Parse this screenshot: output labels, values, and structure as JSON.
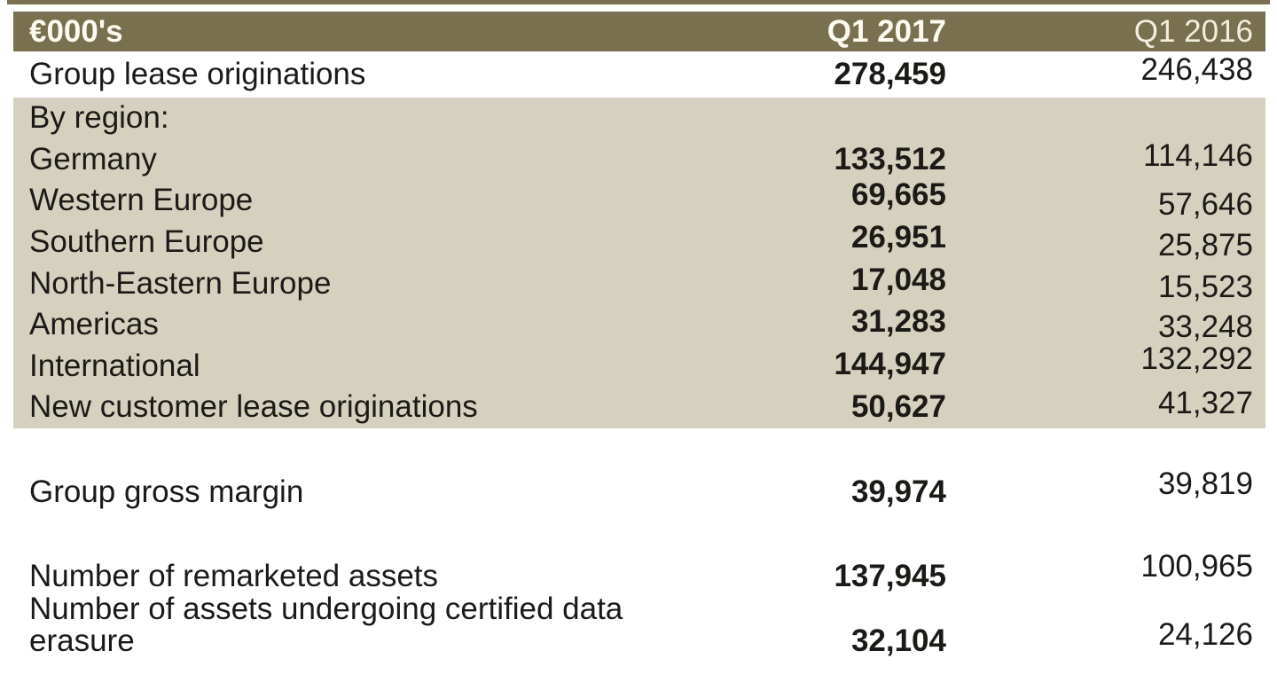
{
  "chart_data": {
    "type": "table",
    "title": "",
    "unit_label": "€000's",
    "columns": [
      "Q1 2017",
      "Q1 2016"
    ],
    "rows": [
      {
        "label": "Group lease originations",
        "q1_2017": "278,459",
        "q1_2016": "246,438"
      },
      {
        "label": "By region:",
        "q1_2017": "",
        "q1_2016": ""
      },
      {
        "label": "Germany",
        "q1_2017": "133,512",
        "q1_2016": "114,146"
      },
      {
        "label": "Western Europe",
        "q1_2017": "69,665",
        "q1_2016": "57,646"
      },
      {
        "label": "Southern Europe",
        "q1_2017": "26,951",
        "q1_2016": "25,875"
      },
      {
        "label": "North-Eastern Europe",
        "q1_2017": "17,048",
        "q1_2016": "15,523"
      },
      {
        "label": "Americas",
        "q1_2017": "31,283",
        "q1_2016": "33,248"
      },
      {
        "label": "International",
        "q1_2017": "144,947",
        "q1_2016": "132,292"
      },
      {
        "label": "New customer lease originations",
        "q1_2017": "50,627",
        "q1_2016": "41,327"
      },
      {
        "label": "Group gross margin",
        "q1_2017": "39,974",
        "q1_2016": "39,819"
      },
      {
        "label": "Number of remarketed assets",
        "q1_2017": "137,945",
        "q1_2016": "100,965"
      },
      {
        "label": "Number of assets undergoing certified data\nerasure",
        "q1_2017": "32,104",
        "q1_2016": "24,126"
      }
    ],
    "layout": {
      "value_columns_right_aligned": true,
      "bold_column": "Q1 2017",
      "highlighted_section_rows": [
        1,
        2,
        3,
        4,
        5,
        6,
        7,
        8
      ],
      "legend_position": "none",
      "grid": false
    }
  },
  "colors": {
    "header_background": "#78704f",
    "section_background": "#d6d0bf",
    "page_background": "#ffffff",
    "header_text": "#fdfaf0",
    "header_text_secondary": "#f2eedd",
    "body_text": "#1b1a17"
  }
}
